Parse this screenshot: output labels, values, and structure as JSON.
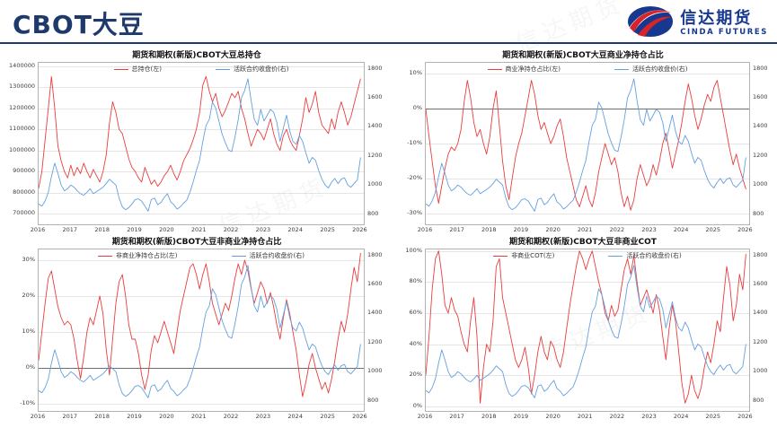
{
  "page": {
    "title": "CBOT大豆",
    "watermark": "信达期货"
  },
  "logo": {
    "name_cn": "信达期货",
    "name_en": "CINDA FUTURES"
  },
  "colors": {
    "header_navy": "#1e3a6d",
    "logo_blue": "#16388e",
    "logo_red": "#d8232a",
    "series_red": "#e83e3e",
    "series_blue": "#64a0e0",
    "grid": "#e5e5e5",
    "zero_line": "#6e6e6e",
    "plot_border": "#b3b3b3"
  },
  "chart_data": {
    "type": "line",
    "x_axis": {
      "tick_labels": [
        "2016",
        "2017",
        "2018",
        "2019",
        "2020",
        "2021",
        "2022",
        "2023",
        "2024",
        "2025",
        "2026"
      ],
      "start_year": 2016,
      "step_years": 0.1,
      "years_span": 10.1
    },
    "price_series": {
      "label": "活跃合约收盘价(右)",
      "values": [
        870,
        855,
        890,
        950,
        1060,
        1150,
        1080,
        1000,
        960,
        975,
        1000,
        985,
        960,
        940,
        930,
        950,
        975,
        940,
        955,
        970,
        985,
        1010,
        1040,
        1020,
        1000,
        910,
        850,
        830,
        845,
        870,
        900,
        905,
        890,
        855,
        820,
        900,
        910,
        865,
        880,
        915,
        940,
        885,
        865,
        835,
        850,
        875,
        895,
        950,
        1020,
        1100,
        1170,
        1300,
        1410,
        1450,
        1570,
        1530,
        1440,
        1350,
        1290,
        1240,
        1230,
        1330,
        1450,
        1600,
        1650,
        1730,
        1580,
        1450,
        1410,
        1520,
        1440,
        1480,
        1520,
        1500,
        1430,
        1300,
        1390,
        1480,
        1370,
        1300,
        1280,
        1340,
        1300,
        1220,
        1150,
        1190,
        1170,
        1100,
        1040,
        1000,
        980,
        1020,
        1045,
        1010,
        1040,
        1050,
        1000,
        985,
        1010,
        1035,
        1190
      ]
    },
    "charts": [
      {
        "title": "期货和期权(新版)CBOT大豆总持仓",
        "legend": [
          "总持仓(左)",
          "活跃合约收盘价(右)"
        ],
        "zero_line": false,
        "left_axis": {
          "min": 650000,
          "max": 1415000,
          "ticks": [
            1400000,
            1300000,
            1200000,
            1100000,
            1000000,
            900000,
            800000,
            700000
          ],
          "unit": ""
        },
        "right_axis": {
          "min": 730,
          "max": 1840,
          "ticks": [
            1800,
            1600,
            1400,
            1200,
            1000,
            800
          ]
        },
        "left_values": [
          820000,
          900000,
          1050000,
          1200000,
          1350000,
          1200000,
          1020000,
          950000,
          900000,
          870000,
          930000,
          880000,
          920000,
          890000,
          940000,
          900000,
          870000,
          910000,
          880000,
          850000,
          900000,
          980000,
          1130000,
          1230000,
          1180000,
          1100000,
          1080000,
          1020000,
          960000,
          920000,
          900000,
          870000,
          850000,
          920000,
          880000,
          840000,
          860000,
          830000,
          850000,
          880000,
          900000,
          930000,
          890000,
          860000,
          900000,
          950000,
          980000,
          1010000,
          1050000,
          1100000,
          1180000,
          1310000,
          1350000,
          1280000,
          1230000,
          1270000,
          1200000,
          1160000,
          1190000,
          1230000,
          1270000,
          1250000,
          1280000,
          1200000,
          1150000,
          1080000,
          1020000,
          1060000,
          1100000,
          1080000,
          1050000,
          1100000,
          1150000,
          1080000,
          1030000,
          1000000,
          1070000,
          1100000,
          1050000,
          1020000,
          1000000,
          1070000,
          1150000,
          1250000,
          1180000,
          1220000,
          1280000,
          1180000,
          1120000,
          1100000,
          1080000,
          1150000,
          1100000,
          1180000,
          1230000,
          1180000,
          1120000,
          1160000,
          1220000,
          1280000,
          1340000
        ]
      },
      {
        "title": "期货和期权(新版)CBOT大豆商业净持仓占比",
        "legend": [
          "商业净持仓占比(左)",
          "活跃合约收盘价(右)"
        ],
        "zero_line": true,
        "left_axis": {
          "min": -33,
          "max": 13,
          "ticks": [
            10,
            0,
            -10,
            -20,
            -30
          ],
          "unit": "%"
        },
        "right_axis": {
          "min": 730,
          "max": 1840,
          "ticks": [
            1800,
            1600,
            1400,
            1200,
            1000,
            800
          ]
        },
        "left_values": [
          0,
          -8,
          -15,
          -22,
          -27,
          -22,
          -17,
          -13,
          -11,
          -12,
          -10,
          -6,
          2,
          8,
          3,
          -4,
          -8,
          -6,
          -10,
          -13,
          -8,
          0,
          5,
          -5,
          -15,
          -22,
          -26,
          -20,
          -14,
          -10,
          -7,
          -2,
          3,
          8,
          4,
          -2,
          -6,
          -4,
          -7,
          -10,
          -8,
          -5,
          -3,
          -8,
          -14,
          -18,
          -22,
          -26,
          -28,
          -25,
          -22,
          -26,
          -28,
          -24,
          -18,
          -14,
          -10,
          -13,
          -16,
          -14,
          -18,
          -24,
          -28,
          -25,
          -29,
          -26,
          -20,
          -16,
          -19,
          -22,
          -20,
          -16,
          -19,
          -15,
          -10,
          -7,
          -12,
          -17,
          -13,
          -9,
          -4,
          2,
          7,
          3,
          -2,
          -6,
          -3,
          1,
          4,
          2,
          6,
          8,
          3,
          -2,
          -7,
          -12,
          -16,
          -13,
          -17,
          -20,
          -23
        ]
      },
      {
        "title": "期货和期权(新版)CBOT大豆非商业净持仓占比",
        "legend": [
          "非商业净持仓占比(左)",
          "活跃合约收盘价(右)"
        ],
        "zero_line": true,
        "left_axis": {
          "min": -12,
          "max": 33,
          "ticks": [
            30,
            20,
            10,
            0,
            -10
          ],
          "unit": "%"
        },
        "right_axis": {
          "min": 730,
          "max": 1840,
          "ticks": [
            1800,
            1600,
            1400,
            1200,
            1000,
            800
          ]
        },
        "left_values": [
          2,
          10,
          18,
          25,
          27,
          22,
          17,
          14,
          12,
          13,
          12,
          8,
          2,
          -3,
          3,
          10,
          14,
          12,
          16,
          20,
          15,
          5,
          -2,
          8,
          18,
          24,
          26,
          20,
          12,
          8,
          8,
          4,
          -2,
          -6,
          -2,
          5,
          9,
          7,
          10,
          13,
          10,
          7,
          4,
          10,
          16,
          20,
          24,
          28,
          29,
          26,
          22,
          26,
          29,
          24,
          18,
          15,
          12,
          15,
          18,
          16,
          20,
          25,
          29,
          26,
          30,
          27,
          22,
          18,
          21,
          24,
          22,
          18,
          21,
          17,
          12,
          8,
          14,
          19,
          15,
          10,
          5,
          -2,
          -8,
          -4,
          1,
          4,
          0,
          -3,
          -6,
          -4,
          -7,
          -3,
          2,
          8,
          13,
          10,
          15,
          22,
          28,
          24,
          32
        ]
      },
      {
        "title": "期货和期权(新版)CBOT大豆非商业COT",
        "legend": [
          "非商业COT(左)",
          "活跃合约收盘价(右)"
        ],
        "zero_line": false,
        "left_axis": {
          "min": -3,
          "max": 101,
          "ticks": [
            100,
            80,
            60,
            40,
            20,
            0
          ],
          "unit": "%"
        },
        "right_axis": {
          "min": 730,
          "max": 1840,
          "ticks": [
            1800,
            1600,
            1400,
            1200,
            1000,
            800
          ]
        },
        "left_values": [
          20,
          45,
          75,
          95,
          100,
          85,
          65,
          60,
          70,
          62,
          58,
          48,
          40,
          35,
          55,
          70,
          45,
          2,
          25,
          40,
          35,
          55,
          90,
          95,
          70,
          60,
          50,
          40,
          30,
          25,
          30,
          38,
          25,
          8,
          20,
          35,
          45,
          35,
          30,
          42,
          38,
          30,
          25,
          35,
          50,
          65,
          78,
          90,
          100,
          95,
          88,
          95,
          100,
          90,
          80,
          72,
          60,
          55,
          65,
          58,
          62,
          75,
          88,
          95,
          85,
          97,
          80,
          65,
          70,
          75,
          68,
          60,
          72,
          62,
          45,
          30,
          50,
          65,
          55,
          35,
          15,
          2,
          8,
          20,
          10,
          5,
          12,
          25,
          35,
          28,
          40,
          55,
          48,
          70,
          90,
          78,
          55,
          65,
          85,
          75,
          98
        ]
      }
    ]
  }
}
